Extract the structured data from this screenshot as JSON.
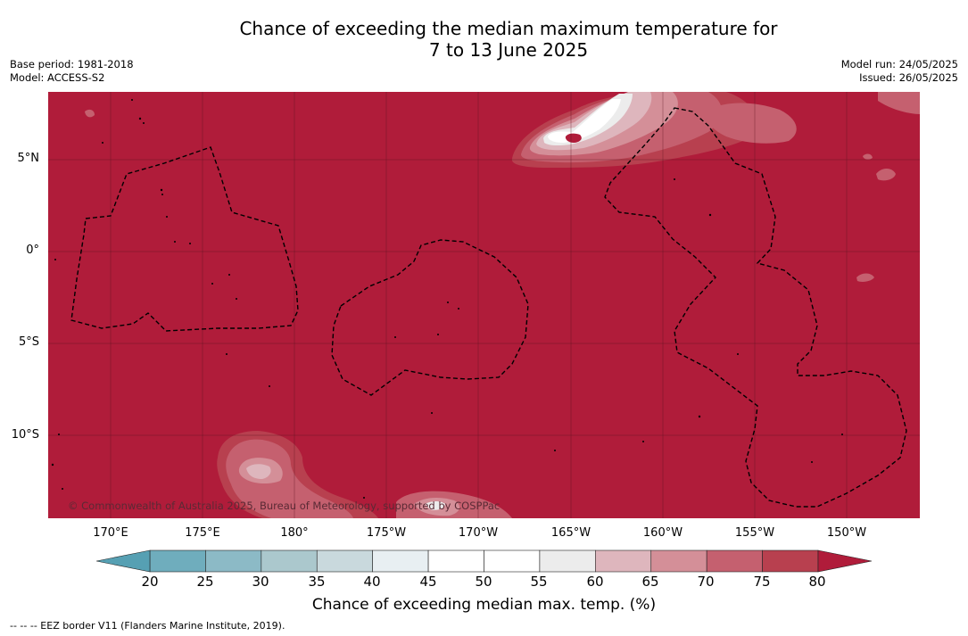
{
  "title_line1": "Chance of exceeding the median maximum temperature for",
  "title_line2": "7 to 13 June 2025",
  "base_period": "Base period: 1981-2018",
  "model": "Model: ACCESS-S2",
  "model_run": "Model run: 24/05/2025",
  "issued": "Issued: 26/05/2025",
  "copyright": "© Commonwealth of Australia 2025, Bureau of Meteorology, supported by COSPPac",
  "lat_labels": [
    "5°N",
    "0°",
    "5°S",
    "10°S"
  ],
  "lon_labels": [
    "170°E",
    "175°E",
    "180°",
    "175°W",
    "170°W",
    "165°W",
    "160°W",
    "155°W",
    "150°W"
  ],
  "colorbar": {
    "ticks": [
      "20",
      "25",
      "30",
      "35",
      "40",
      "45",
      "50",
      "55",
      "60",
      "65",
      "70",
      "75",
      "80"
    ],
    "colors": [
      "#56a0b3",
      "#6fadbd",
      "#8cbac6",
      "#abc8cd",
      "#c9d9dd",
      "#e8eff2",
      "#ffffff",
      "#ffffff",
      "#ececec",
      "#deb6bd",
      "#d48f98",
      "#c5606f",
      "#b8404f",
      "#b01c3a"
    ],
    "label": "Chance of exceeding median max. temp. (%)"
  },
  "map_colors": {
    "dominant": "#b01c3a",
    "c75": "#b8404f",
    "c70": "#c5606f",
    "c65": "#d48f98",
    "c60": "#deb6bd",
    "c55": "#ececec",
    "c50": "#ffffff"
  },
  "footnote": "--  --  -- EEZ border V11 (Flanders Marine Institute, 2019)."
}
